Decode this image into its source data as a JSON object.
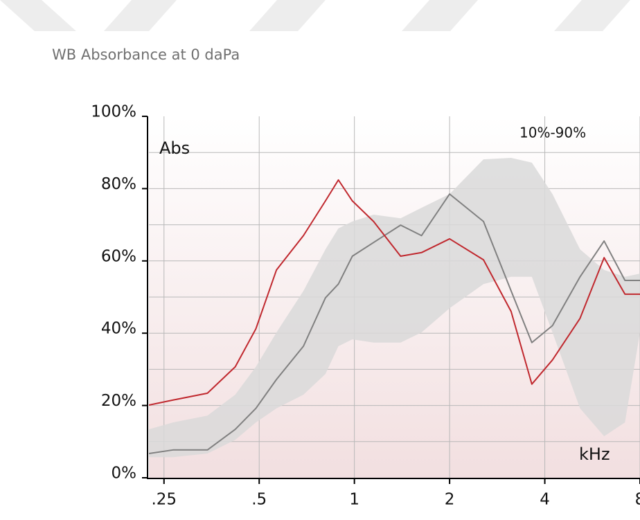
{
  "chart_data": {
    "type": "line",
    "title": "WB Absorbance at 0 daPa",
    "y_label": "Abs",
    "x_label": "kHz",
    "xscale": "log",
    "x": [
      0.224,
      0.267,
      0.343,
      0.42,
      0.488,
      0.567,
      0.69,
      0.81,
      0.89,
      0.985,
      1.15,
      1.4,
      1.63,
      2.0,
      2.56,
      3.13,
      3.64,
      4.23,
      5.17,
      6.16,
      7.17,
      8
    ],
    "series": [
      {
        "color": "#c0282e",
        "values": [
          20.1,
          21.5,
          23.4,
          30.7,
          41.2,
          57.5,
          67,
          76.6,
          82.4,
          76.6,
          70.9,
          61.3,
          62.3,
          66.1,
          60.3,
          46,
          25.9,
          32.6,
          44.1,
          60.9,
          50.8,
          50.8
        ]
      },
      {
        "color": "#808080",
        "values": [
          6.7,
          7.7,
          7.7,
          13.4,
          19.2,
          27.2,
          36.4,
          49.8,
          53.6,
          61.3,
          65.1,
          69.9,
          67,
          78.5,
          70.9,
          51.7,
          37.4,
          42.1,
          55.6,
          65.5,
          54.6,
          54.6
        ]
      }
    ],
    "band": {
      "name": "10%-90%",
      "color": "#d9d9d9",
      "upper": [
        13.4,
        15.3,
        17.2,
        23,
        30.7,
        40.2,
        51.7,
        63.2,
        69,
        70.9,
        72.8,
        71.8,
        74.7,
        78.5,
        88.1,
        88.5,
        87.2,
        78.5,
        63.2,
        57.5,
        55.6,
        56.5
      ],
      "lower": [
        5.7,
        5.7,
        6.7,
        10.5,
        15.3,
        19.2,
        23,
        28.7,
        36.4,
        38.3,
        37.4,
        37.4,
        40.2,
        46.9,
        53.6,
        55.6,
        55.6,
        40.2,
        19.2,
        11.5,
        15.3,
        40.2
      ]
    },
    "xlim": [
      0.224,
      8
    ],
    "xticks": [
      {
        "value": 0.25,
        "label": ".25"
      },
      {
        "value": 0.5,
        "label": ".5"
      },
      1,
      2,
      4,
      8
    ],
    "ylim": [
      0,
      100
    ],
    "yticks": [
      {
        "value": 0,
        "label": "0%"
      },
      {
        "value": 20,
        "label": "20%"
      },
      {
        "value": 40,
        "label": "40%"
      },
      {
        "value": 60,
        "label": "60%"
      },
      {
        "value": 80,
        "label": "80%"
      },
      {
        "value": 100,
        "label": "100%"
      }
    ],
    "ygrid": [
      10,
      20,
      30,
      40,
      50,
      60,
      70,
      80,
      90
    ],
    "grid": true
  }
}
